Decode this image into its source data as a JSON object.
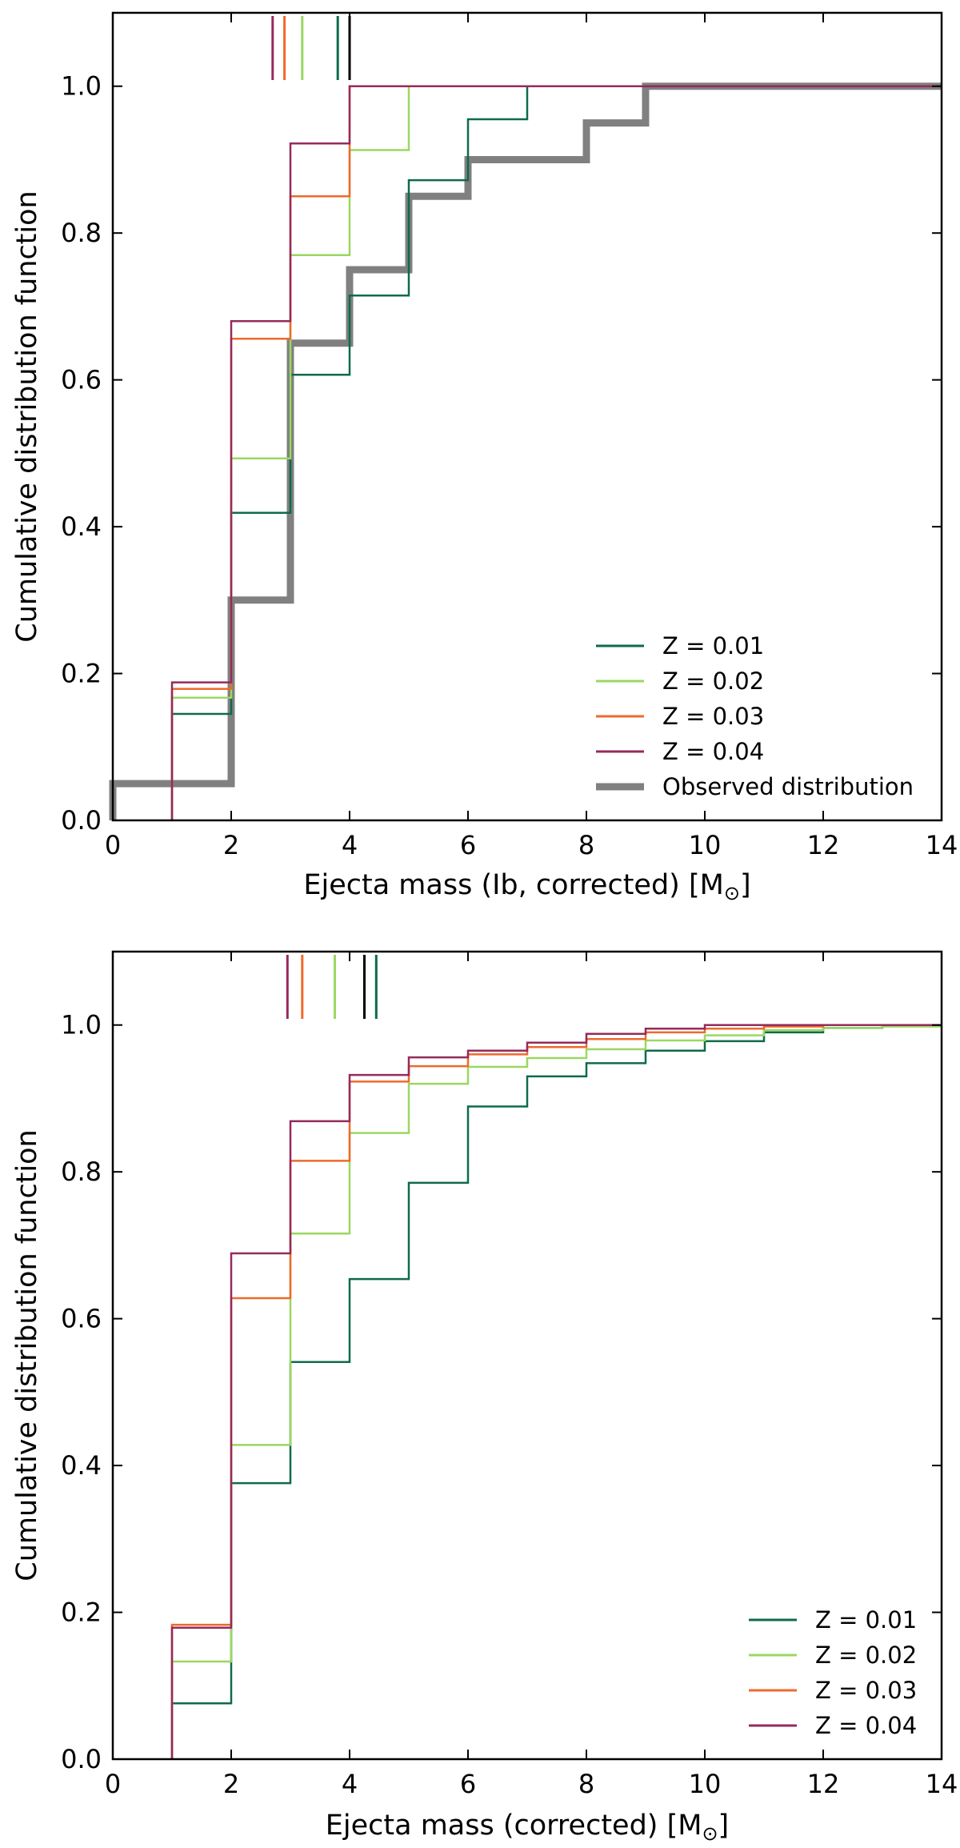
{
  "colors": {
    "z001": "#0e6b48",
    "z002": "#9bd761",
    "z003": "#ee6a2c",
    "z004": "#942b5c",
    "observed": "#808080",
    "median_black": "#000000"
  },
  "chart_data": [
    {
      "type": "line",
      "step": true,
      "title": "",
      "xlabel": "Ejecta mass (Ib, corrected) [M",
      "xlabel_symbol": "⊙",
      "xlabel_close": "]",
      "ylabel": "Cumulative distribution function",
      "xlim": [
        0,
        14
      ],
      "ylim": [
        0,
        1.1
      ],
      "xticks": [
        "0",
        "2",
        "4",
        "6",
        "8",
        "10",
        "12",
        "14"
      ],
      "yticks": [
        "0.0",
        "0.2",
        "0.4",
        "0.6",
        "0.8",
        "1.0"
      ],
      "grid": false,
      "legend_position": "lower-right",
      "series": [
        {
          "name": "Z = 0.01",
          "color": "#0e6b48",
          "width": 2.5,
          "x": [
            1,
            2,
            3,
            4,
            5,
            6,
            7,
            14
          ],
          "y": [
            0.145,
            0.419,
            0.607,
            0.715,
            0.872,
            0.955,
            1.0,
            1.0
          ]
        },
        {
          "name": "Z = 0.02",
          "color": "#9bd761",
          "width": 2.5,
          "x": [
            1,
            2,
            3,
            4,
            5,
            14
          ],
          "y": [
            0.167,
            0.493,
            0.77,
            0.913,
            1.0,
            1.0
          ]
        },
        {
          "name": "Z = 0.03",
          "color": "#ee6a2c",
          "width": 2.5,
          "x": [
            1,
            2,
            3,
            4,
            14
          ],
          "y": [
            0.179,
            0.656,
            0.85,
            1.0,
            1.0
          ]
        },
        {
          "name": "Z = 0.04",
          "color": "#942b5c",
          "width": 2.5,
          "x": [
            1,
            2,
            3,
            4,
            14
          ],
          "y": [
            0.188,
            0.68,
            0.922,
            1.0,
            1.0
          ]
        },
        {
          "name": "Observed distribution",
          "color": "#808080",
          "width": 9,
          "x": [
            0,
            2,
            3,
            4,
            5,
            6,
            8,
            9,
            14
          ],
          "y": [
            0.05,
            0.3,
            0.65,
            0.75,
            0.85,
            0.9,
            0.95,
            1.0,
            1.0
          ]
        }
      ],
      "median_markers": [
        {
          "x": 2.7,
          "color": "#942b5c"
        },
        {
          "x": 2.9,
          "color": "#ee6a2c"
        },
        {
          "x": 3.2,
          "color": "#9bd761"
        },
        {
          "x": 3.8,
          "color": "#0e6b48"
        },
        {
          "x": 4.0,
          "color": "#000000"
        }
      ]
    },
    {
      "type": "line",
      "step": true,
      "title": "",
      "xlabel": "Ejecta mass (corrected) [M",
      "xlabel_symbol": "⊙",
      "xlabel_close": "]",
      "ylabel": "Cumulative distribution function",
      "xlim": [
        0,
        14
      ],
      "ylim": [
        0,
        1.1
      ],
      "xticks": [
        "0",
        "2",
        "4",
        "6",
        "8",
        "10",
        "12",
        "14"
      ],
      "yticks": [
        "0.0",
        "0.2",
        "0.4",
        "0.6",
        "0.8",
        "1.0"
      ],
      "grid": false,
      "legend_position": "lower-right",
      "series": [
        {
          "name": "Z = 0.01",
          "color": "#0e6b48",
          "width": 2.5,
          "x": [
            1,
            2,
            3,
            4,
            5,
            6,
            7,
            8,
            9,
            10,
            11,
            12,
            13,
            14
          ],
          "y": [
            0.076,
            0.376,
            0.541,
            0.654,
            0.785,
            0.889,
            0.93,
            0.948,
            0.965,
            0.978,
            0.99,
            0.996,
            1.0,
            1.0
          ]
        },
        {
          "name": "Z = 0.02",
          "color": "#9bd761",
          "width": 2.5,
          "x": [
            1,
            2,
            3,
            4,
            5,
            6,
            7,
            8,
            9,
            10,
            11,
            12,
            13,
            14
          ],
          "y": [
            0.133,
            0.428,
            0.716,
            0.853,
            0.92,
            0.943,
            0.955,
            0.967,
            0.979,
            0.986,
            0.993,
            0.996,
            0.998,
            1.0
          ]
        },
        {
          "name": "Z = 0.03",
          "color": "#ee6a2c",
          "width": 2.5,
          "x": [
            1,
            2,
            3,
            4,
            5,
            6,
            7,
            8,
            9,
            10,
            11,
            12,
            13,
            14
          ],
          "y": [
            0.183,
            0.628,
            0.815,
            0.923,
            0.944,
            0.96,
            0.97,
            0.981,
            0.99,
            0.995,
            0.998,
            1.0,
            1.0,
            1.0
          ]
        },
        {
          "name": "Z = 0.04",
          "color": "#942b5c",
          "width": 2.5,
          "x": [
            1,
            2,
            3,
            4,
            5,
            6,
            7,
            8,
            9,
            10,
            11,
            12,
            13,
            14
          ],
          "y": [
            0.179,
            0.689,
            0.869,
            0.932,
            0.956,
            0.965,
            0.976,
            0.988,
            0.995,
            1.0,
            1.0,
            1.0,
            1.0,
            1.0
          ]
        }
      ],
      "median_markers": [
        {
          "x": 2.95,
          "color": "#942b5c"
        },
        {
          "x": 3.2,
          "color": "#ee6a2c"
        },
        {
          "x": 3.75,
          "color": "#9bd761"
        },
        {
          "x": 4.25,
          "color": "#000000"
        },
        {
          "x": 4.45,
          "color": "#0e6b48"
        }
      ]
    }
  ]
}
